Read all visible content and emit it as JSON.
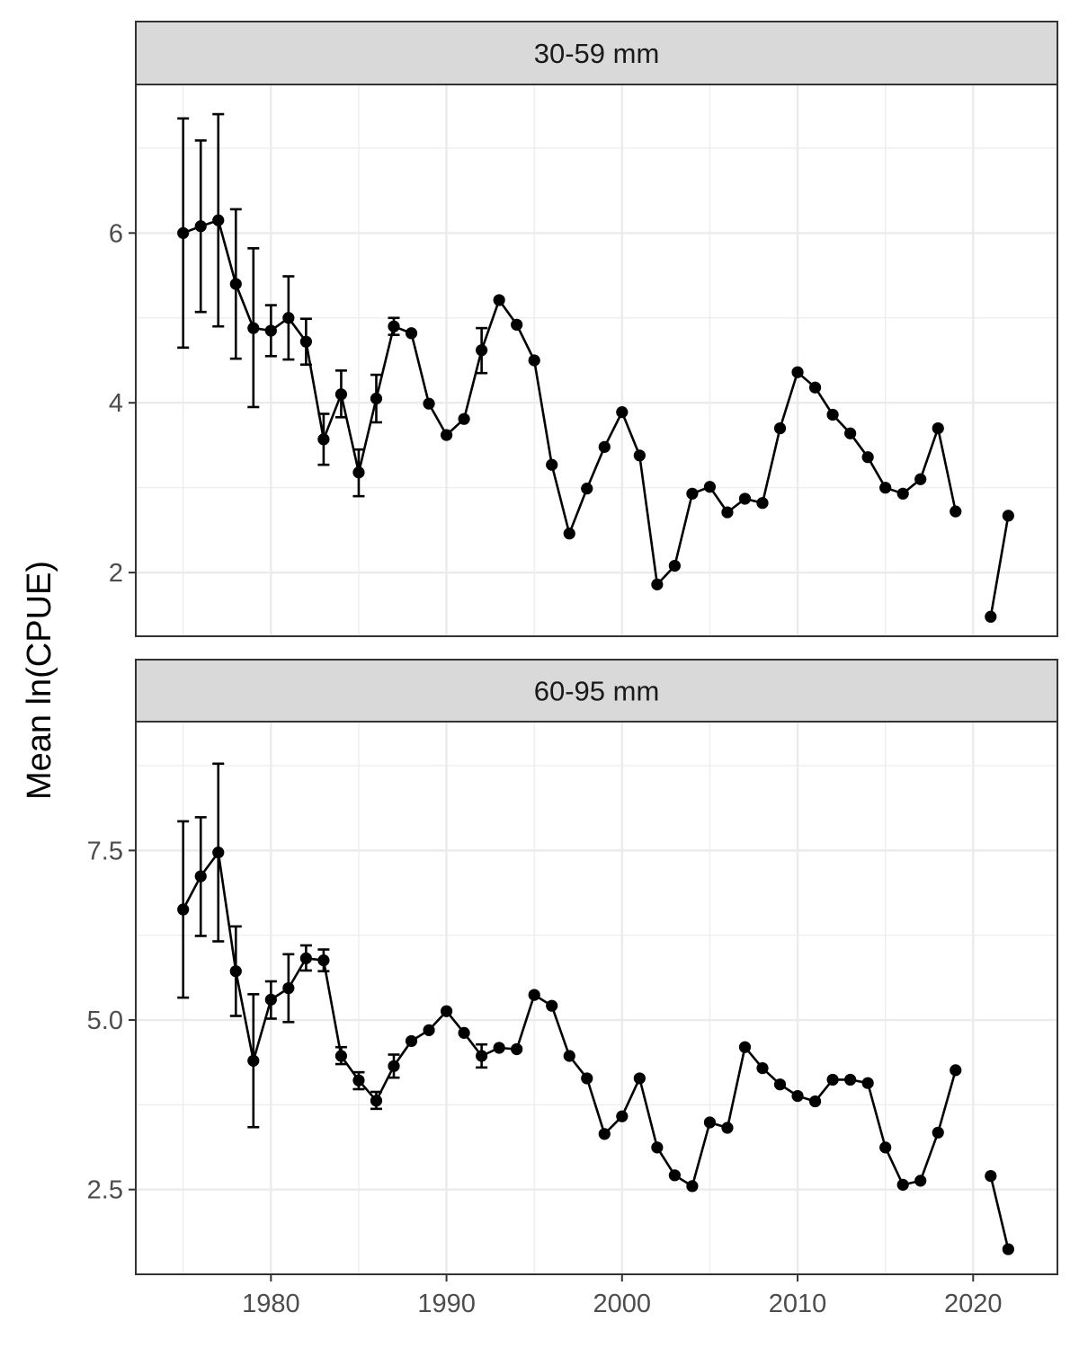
{
  "chart_data": {
    "type": "line",
    "ylabel": "Mean ln(CPUE)",
    "xlabel": "",
    "xlim": [
      1972.3,
      2024.8
    ],
    "xticks": [
      1980,
      1990,
      2000,
      2010,
      2020
    ],
    "grid": true,
    "colors": {
      "points": "#000000",
      "line": "#000000",
      "strip_fill": "#d9d9d9",
      "panel_border": "#333333",
      "grid": "#ebebeb"
    },
    "panels": [
      {
        "strip": "30-59 mm",
        "ylim": [
          1.25,
          7.75
        ],
        "yticks": [
          2,
          4,
          6
        ],
        "ytick_labels": [
          "2",
          "4",
          "6"
        ],
        "points": [
          {
            "x": 1975,
            "y": 6.0,
            "lo": 4.65,
            "hi": 7.35
          },
          {
            "x": 1976,
            "y": 6.08,
            "lo": 5.07,
            "hi": 7.09
          },
          {
            "x": 1977,
            "y": 6.15,
            "lo": 4.9,
            "hi": 7.4
          },
          {
            "x": 1978,
            "y": 5.4,
            "lo": 4.52,
            "hi": 6.28
          },
          {
            "x": 1979,
            "y": 4.88,
            "lo": 3.95,
            "hi": 5.82
          },
          {
            "x": 1980,
            "y": 4.85,
            "lo": 4.55,
            "hi": 5.15
          },
          {
            "x": 1981,
            "y": 5.0,
            "lo": 4.51,
            "hi": 5.49
          },
          {
            "x": 1982,
            "y": 4.72,
            "lo": 4.45,
            "hi": 4.99
          },
          {
            "x": 1983,
            "y": 3.57,
            "lo": 3.27,
            "hi": 3.87
          },
          {
            "x": 1984,
            "y": 4.1,
            "lo": 3.83,
            "hi": 4.38
          },
          {
            "x": 1985,
            "y": 3.18,
            "lo": 2.9,
            "hi": 3.45
          },
          {
            "x": 1986,
            "y": 4.05,
            "lo": 3.77,
            "hi": 4.33
          },
          {
            "x": 1987,
            "y": 4.9,
            "lo": 4.8,
            "hi": 5.0
          },
          {
            "x": 1988,
            "y": 4.82
          },
          {
            "x": 1989,
            "y": 3.99
          },
          {
            "x": 1990,
            "y": 3.62
          },
          {
            "x": 1991,
            "y": 3.81
          },
          {
            "x": 1992,
            "y": 4.62,
            "lo": 4.35,
            "hi": 4.88
          },
          {
            "x": 1993,
            "y": 5.21
          },
          {
            "x": 1994,
            "y": 4.92
          },
          {
            "x": 1995,
            "y": 4.5
          },
          {
            "x": 1996,
            "y": 3.27
          },
          {
            "x": 1997,
            "y": 2.46
          },
          {
            "x": 1998,
            "y": 2.99
          },
          {
            "x": 1999,
            "y": 3.48
          },
          {
            "x": 2000,
            "y": 3.89
          },
          {
            "x": 2001,
            "y": 3.38
          },
          {
            "x": 2002,
            "y": 1.86
          },
          {
            "x": 2003,
            "y": 2.08
          },
          {
            "x": 2004,
            "y": 2.93
          },
          {
            "x": 2005,
            "y": 3.01
          },
          {
            "x": 2006,
            "y": 2.71
          },
          {
            "x": 2007,
            "y": 2.87
          },
          {
            "x": 2008,
            "y": 2.82
          },
          {
            "x": 2009,
            "y": 3.7
          },
          {
            "x": 2010,
            "y": 4.36
          },
          {
            "x": 2011,
            "y": 4.18
          },
          {
            "x": 2012,
            "y": 3.86
          },
          {
            "x": 2013,
            "y": 3.64
          },
          {
            "x": 2014,
            "y": 3.36
          },
          {
            "x": 2015,
            "y": 3.0
          },
          {
            "x": 2016,
            "y": 2.93
          },
          {
            "x": 2017,
            "y": 3.1
          },
          {
            "x": 2018,
            "y": 3.7
          },
          {
            "x": 2019,
            "y": 2.72
          },
          {
            "x": 2021,
            "y": 1.48
          },
          {
            "x": 2022,
            "y": 2.67
          }
        ]
      },
      {
        "strip": "60-95 mm",
        "ylim": [
          1.25,
          9.4
        ],
        "yticks": [
          2.5,
          5.0,
          7.5
        ],
        "ytick_labels": [
          "2.5",
          "5.0",
          "7.5"
        ],
        "points": [
          {
            "x": 1975,
            "y": 6.63,
            "lo": 5.33,
            "hi": 7.93
          },
          {
            "x": 1976,
            "y": 7.12,
            "lo": 6.24,
            "hi": 7.99
          },
          {
            "x": 1977,
            "y": 7.47,
            "lo": 6.16,
            "hi": 8.78
          },
          {
            "x": 1978,
            "y": 5.72,
            "lo": 5.06,
            "hi": 6.38
          },
          {
            "x": 1979,
            "y": 4.4,
            "lo": 3.42,
            "hi": 5.38
          },
          {
            "x": 1980,
            "y": 5.3,
            "lo": 5.02,
            "hi": 5.57
          },
          {
            "x": 1981,
            "y": 5.47,
            "lo": 4.97,
            "hi": 5.97
          },
          {
            "x": 1982,
            "y": 5.91,
            "lo": 5.73,
            "hi": 6.1
          },
          {
            "x": 1983,
            "y": 5.88,
            "lo": 5.72,
            "hi": 6.04
          },
          {
            "x": 1984,
            "y": 4.47,
            "lo": 4.35,
            "hi": 4.6
          },
          {
            "x": 1985,
            "y": 4.11,
            "lo": 3.98,
            "hi": 4.23
          },
          {
            "x": 1986,
            "y": 3.81,
            "lo": 3.69,
            "hi": 3.94
          },
          {
            "x": 1987,
            "y": 4.32,
            "lo": 4.15,
            "hi": 4.49
          },
          {
            "x": 1988,
            "y": 4.69
          },
          {
            "x": 1989,
            "y": 4.85
          },
          {
            "x": 1990,
            "y": 5.13
          },
          {
            "x": 1991,
            "y": 4.81
          },
          {
            "x": 1992,
            "y": 4.47,
            "lo": 4.3,
            "hi": 4.64
          },
          {
            "x": 1993,
            "y": 4.59
          },
          {
            "x": 1994,
            "y": 4.57
          },
          {
            "x": 1995,
            "y": 5.37
          },
          {
            "x": 1996,
            "y": 5.21
          },
          {
            "x": 1997,
            "y": 4.47
          },
          {
            "x": 1998,
            "y": 4.14
          },
          {
            "x": 1999,
            "y": 3.32
          },
          {
            "x": 2000,
            "y": 3.58
          },
          {
            "x": 2001,
            "y": 4.14
          },
          {
            "x": 2002,
            "y": 3.12
          },
          {
            "x": 2003,
            "y": 2.71
          },
          {
            "x": 2004,
            "y": 2.55
          },
          {
            "x": 2005,
            "y": 3.49
          },
          {
            "x": 2006,
            "y": 3.41
          },
          {
            "x": 2007,
            "y": 4.6
          },
          {
            "x": 2008,
            "y": 4.29
          },
          {
            "x": 2009,
            "y": 4.05
          },
          {
            "x": 2010,
            "y": 3.88
          },
          {
            "x": 2011,
            "y": 3.8
          },
          {
            "x": 2012,
            "y": 4.12
          },
          {
            "x": 2013,
            "y": 4.12
          },
          {
            "x": 2014,
            "y": 4.07
          },
          {
            "x": 2015,
            "y": 3.12
          },
          {
            "x": 2016,
            "y": 2.57
          },
          {
            "x": 2017,
            "y": 2.63
          },
          {
            "x": 2018,
            "y": 3.34
          },
          {
            "x": 2019,
            "y": 4.26
          },
          {
            "x": 2021,
            "y": 2.7
          },
          {
            "x": 2022,
            "y": 1.62
          }
        ]
      }
    ]
  }
}
